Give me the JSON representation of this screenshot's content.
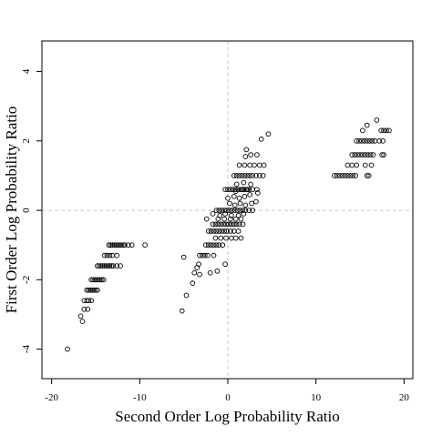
{
  "chart_data": {
    "type": "scatter",
    "title": "",
    "xlabel": "Second Order Log Probability Ratio",
    "ylabel": "First Order Log Probability Ratio",
    "xlim": [
      -21.1,
      21.0
    ],
    "ylim": [
      -4.85,
      4.88
    ],
    "x_ticks": [
      -20,
      -10,
      0,
      10,
      20
    ],
    "y_ticks": [
      -4,
      -2,
      0,
      2,
      4
    ],
    "x_tick_labels": [
      "-20",
      "-10",
      "0",
      "10",
      "20"
    ],
    "y_tick_labels": [
      "-4",
      "-2",
      "0",
      "2",
      "4"
    ],
    "reference_lines": {
      "x": 0,
      "y": 0,
      "style": "dashed"
    },
    "grid": false,
    "legend": "none",
    "marker": "open-circle",
    "series": [
      {
        "points": [
          [
            -18.2,
            -4.0
          ],
          [
            -16.7,
            -3.05
          ],
          [
            -16.5,
            -3.2
          ],
          [
            -16.3,
            -2.85
          ],
          [
            -16.0,
            -2.6
          ],
          [
            -16.3,
            -2.6
          ],
          [
            -15.8,
            -2.6
          ],
          [
            -15.5,
            -2.6
          ],
          [
            -15.9,
            -2.85
          ],
          [
            -16.0,
            -2.3
          ],
          [
            -15.8,
            -2.3
          ],
          [
            -15.6,
            -2.3
          ],
          [
            -15.4,
            -2.3
          ],
          [
            -15.2,
            -2.3
          ],
          [
            -15.0,
            -2.3
          ],
          [
            -14.8,
            -2.3
          ],
          [
            -15.5,
            -2.0
          ],
          [
            -15.3,
            -2.0
          ],
          [
            -15.1,
            -2.0
          ],
          [
            -14.9,
            -2.0
          ],
          [
            -14.7,
            -2.0
          ],
          [
            -14.5,
            -2.0
          ],
          [
            -14.3,
            -2.0
          ],
          [
            -14.1,
            -2.0
          ],
          [
            -14.8,
            -1.6
          ],
          [
            -14.6,
            -1.6
          ],
          [
            -14.4,
            -1.6
          ],
          [
            -14.2,
            -1.6
          ],
          [
            -14.0,
            -1.6
          ],
          [
            -13.8,
            -1.6
          ],
          [
            -13.6,
            -1.6
          ],
          [
            -13.4,
            -1.6
          ],
          [
            -13.2,
            -1.6
          ],
          [
            -13.0,
            -1.6
          ],
          [
            -12.6,
            -1.6
          ],
          [
            -12.2,
            -1.6
          ],
          [
            -14.0,
            -1.3
          ],
          [
            -13.7,
            -1.3
          ],
          [
            -13.4,
            -1.3
          ],
          [
            -13.1,
            -1.3
          ],
          [
            -12.6,
            -1.3
          ],
          [
            -13.5,
            -1.0
          ],
          [
            -13.3,
            -1.0
          ],
          [
            -13.1,
            -1.0
          ],
          [
            -12.9,
            -1.0
          ],
          [
            -12.7,
            -1.0
          ],
          [
            -12.5,
            -1.0
          ],
          [
            -12.3,
            -1.0
          ],
          [
            -12.1,
            -1.0
          ],
          [
            -11.9,
            -1.0
          ],
          [
            -11.7,
            -1.0
          ],
          [
            -11.3,
            -1.0
          ],
          [
            -10.9,
            -1.0
          ],
          [
            -9.4,
            -1.0
          ],
          [
            -5.2,
            -2.9
          ],
          [
            -5.0,
            -1.35
          ],
          [
            -4.7,
            -2.45
          ],
          [
            -4.0,
            -2.1
          ],
          [
            -3.8,
            -1.8
          ],
          [
            -3.5,
            -1.65
          ],
          [
            -3.2,
            -1.85
          ],
          [
            -3.3,
            -1.55
          ],
          [
            -3.2,
            -1.3
          ],
          [
            -2.9,
            -1.3
          ],
          [
            -2.6,
            -1.3
          ],
          [
            -2.3,
            -1.3
          ],
          [
            -1.6,
            -1.3
          ],
          [
            -2.0,
            -1.8
          ],
          [
            -1.2,
            -1.75
          ],
          [
            -0.3,
            -1.55
          ],
          [
            -2.5,
            -1.0
          ],
          [
            -2.2,
            -1.0
          ],
          [
            -1.9,
            -1.0
          ],
          [
            -1.6,
            -1.0
          ],
          [
            -1.3,
            -1.0
          ],
          [
            -1.0,
            -1.0
          ],
          [
            -0.6,
            -1.0
          ],
          [
            -2.2,
            -0.6
          ],
          [
            -1.9,
            -0.6
          ],
          [
            -1.6,
            -0.6
          ],
          [
            -1.3,
            -0.6
          ],
          [
            -1.0,
            -0.6
          ],
          [
            -0.7,
            -0.6
          ],
          [
            -0.4,
            -0.6
          ],
          [
            -0.1,
            -0.6
          ],
          [
            0.3,
            -0.6
          ],
          [
            0.7,
            -0.6
          ],
          [
            1.2,
            -0.6
          ],
          [
            -1.7,
            -0.4
          ],
          [
            -1.4,
            -0.4
          ],
          [
            -1.1,
            -0.4
          ],
          [
            -0.8,
            -0.4
          ],
          [
            -0.5,
            -0.4
          ],
          [
            -0.2,
            -0.4
          ],
          [
            0.1,
            -0.4
          ],
          [
            0.4,
            -0.4
          ],
          [
            0.7,
            -0.4
          ],
          [
            1.0,
            -0.4
          ],
          [
            1.3,
            -0.4
          ],
          [
            1.7,
            -0.4
          ],
          [
            -2.4,
            -0.25
          ],
          [
            -1.1,
            -0.25
          ],
          [
            -0.4,
            -0.25
          ],
          [
            0.3,
            -0.25
          ],
          [
            0.9,
            -0.25
          ],
          [
            1.5,
            -0.25
          ],
          [
            -1.4,
            -0.8
          ],
          [
            -0.8,
            -0.8
          ],
          [
            -0.2,
            -0.8
          ],
          [
            0.4,
            -0.8
          ],
          [
            0.9,
            -0.8
          ],
          [
            1.5,
            -0.8
          ],
          [
            -1.7,
            -0.1
          ],
          [
            -0.9,
            -0.15
          ],
          [
            -0.3,
            -0.1
          ],
          [
            0.4,
            -0.15
          ],
          [
            1.2,
            -0.15
          ],
          [
            1.8,
            -0.1
          ],
          [
            -1.3,
            0.0
          ],
          [
            -1.0,
            0.0
          ],
          [
            -0.7,
            0.0
          ],
          [
            -0.4,
            0.0
          ],
          [
            -0.1,
            0.0
          ],
          [
            0.2,
            0.0
          ],
          [
            0.5,
            0.0
          ],
          [
            0.8,
            0.0
          ],
          [
            1.1,
            0.0
          ],
          [
            1.4,
            0.0
          ],
          [
            1.7,
            0.0
          ],
          [
            2.0,
            0.0
          ],
          [
            2.4,
            0.0
          ],
          [
            2.8,
            0.0
          ],
          [
            0.2,
            0.2
          ],
          [
            0.8,
            0.15
          ],
          [
            1.4,
            0.2
          ],
          [
            2.0,
            0.15
          ],
          [
            2.7,
            0.2
          ],
          [
            3.2,
            0.25
          ],
          [
            0.0,
            0.35
          ],
          [
            0.7,
            0.4
          ],
          [
            1.3,
            0.35
          ],
          [
            1.9,
            0.4
          ],
          [
            2.5,
            0.45
          ],
          [
            3.4,
            0.5
          ],
          [
            0.9,
            0.55
          ],
          [
            1.6,
            0.6
          ],
          [
            2.2,
            0.6
          ],
          [
            -0.3,
            0.6
          ],
          [
            0.0,
            0.6
          ],
          [
            0.3,
            0.6
          ],
          [
            0.6,
            0.6
          ],
          [
            0.9,
            0.6
          ],
          [
            1.2,
            0.6
          ],
          [
            1.5,
            0.6
          ],
          [
            1.8,
            0.6
          ],
          [
            2.1,
            0.6
          ],
          [
            2.4,
            0.6
          ],
          [
            2.8,
            0.6
          ],
          [
            3.3,
            0.6
          ],
          [
            1.0,
            0.75
          ],
          [
            1.8,
            0.8
          ],
          [
            2.6,
            0.75
          ],
          [
            0.7,
            1.0
          ],
          [
            1.0,
            1.0
          ],
          [
            1.3,
            1.0
          ],
          [
            1.6,
            1.0
          ],
          [
            1.9,
            1.0
          ],
          [
            2.2,
            1.0
          ],
          [
            2.5,
            1.0
          ],
          [
            2.8,
            1.0
          ],
          [
            3.2,
            1.0
          ],
          [
            3.6,
            1.0
          ],
          [
            4.0,
            1.0
          ],
          [
            1.3,
            1.3
          ],
          [
            1.9,
            1.3
          ],
          [
            2.5,
            1.3
          ],
          [
            3.0,
            1.3
          ],
          [
            3.6,
            1.3
          ],
          [
            4.1,
            1.3
          ],
          [
            2.0,
            1.55
          ],
          [
            2.6,
            1.6
          ],
          [
            3.3,
            1.6
          ],
          [
            2.1,
            1.75
          ],
          [
            3.8,
            2.05
          ],
          [
            4.6,
            2.2
          ],
          [
            12.1,
            1.0
          ],
          [
            12.4,
            1.0
          ],
          [
            12.7,
            1.0
          ],
          [
            13.0,
            1.0
          ],
          [
            13.3,
            1.0
          ],
          [
            13.6,
            1.0
          ],
          [
            13.9,
            1.0
          ],
          [
            14.2,
            1.0
          ],
          [
            14.5,
            1.0
          ],
          [
            15.8,
            1.0
          ],
          [
            16.0,
            1.0
          ],
          [
            13.6,
            1.3
          ],
          [
            14.1,
            1.3
          ],
          [
            14.6,
            1.3
          ],
          [
            15.6,
            1.3
          ],
          [
            16.3,
            1.3
          ],
          [
            14.1,
            1.6
          ],
          [
            14.4,
            1.6
          ],
          [
            14.7,
            1.6
          ],
          [
            15.0,
            1.6
          ],
          [
            15.3,
            1.6
          ],
          [
            15.6,
            1.6
          ],
          [
            15.9,
            1.6
          ],
          [
            16.2,
            1.6
          ],
          [
            16.5,
            1.6
          ],
          [
            17.5,
            1.6
          ],
          [
            17.7,
            1.6
          ],
          [
            14.6,
            2.0
          ],
          [
            14.9,
            2.0
          ],
          [
            15.2,
            2.0
          ],
          [
            15.5,
            2.0
          ],
          [
            15.8,
            2.0
          ],
          [
            16.1,
            2.0
          ],
          [
            16.4,
            2.0
          ],
          [
            16.7,
            2.0
          ],
          [
            17.2,
            2.0
          ],
          [
            17.6,
            2.0
          ],
          [
            15.3,
            2.3
          ],
          [
            17.4,
            2.3
          ],
          [
            17.7,
            2.3
          ],
          [
            18.0,
            2.3
          ],
          [
            18.3,
            2.3
          ],
          [
            15.8,
            2.45
          ],
          [
            16.9,
            2.6
          ]
        ]
      }
    ]
  }
}
